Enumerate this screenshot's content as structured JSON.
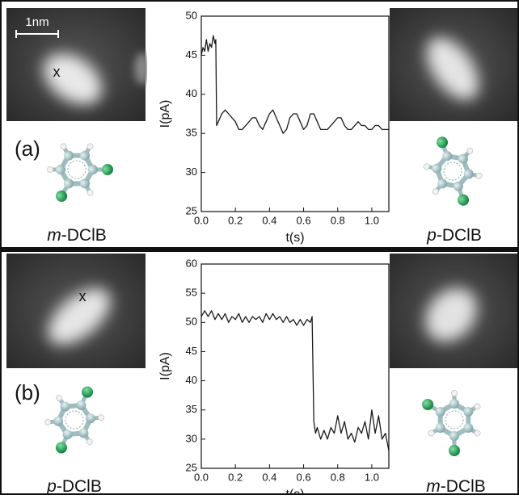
{
  "panels": [
    {
      "label": "(a)",
      "scale_bar": "1nm",
      "tip_mark": "x",
      "left_molecule": {
        "italic": "m",
        "rest": "-DClB"
      },
      "right_molecule": {
        "italic": "p",
        "rest": "-DClB"
      }
    },
    {
      "label": "(b)",
      "tip_mark": "x",
      "left_molecule": {
        "italic": "p",
        "rest": "-DClB"
      },
      "right_molecule": {
        "italic": "m",
        "rest": "-DClB"
      }
    }
  ],
  "chart_data": [
    {
      "type": "line",
      "x_label": "t(s)",
      "y_label": "I(pA)",
      "color": "#1a1a1a",
      "x": [
        0,
        0.01,
        0.02,
        0.03,
        0.04,
        0.05,
        0.06,
        0.07,
        0.08,
        0.085,
        0.09,
        0.1,
        0.12,
        0.14,
        0.16,
        0.18,
        0.2,
        0.22,
        0.24,
        0.26,
        0.28,
        0.3,
        0.32,
        0.34,
        0.36,
        0.38,
        0.4,
        0.42,
        0.44,
        0.46,
        0.48,
        0.5,
        0.52,
        0.54,
        0.56,
        0.58,
        0.6,
        0.62,
        0.64,
        0.66,
        0.68,
        0.7,
        0.72,
        0.74,
        0.76,
        0.78,
        0.8,
        0.82,
        0.84,
        0.86,
        0.88,
        0.9,
        0.92,
        0.94,
        0.96,
        0.98,
        1.0,
        1.02,
        1.04,
        1.06,
        1.08,
        1.1
      ],
      "values": [
        45,
        46,
        45.5,
        47,
        45.5,
        46.5,
        46,
        47.5,
        46.5,
        47,
        36,
        36.5,
        37.5,
        38,
        37.5,
        37,
        36.5,
        35.5,
        35.5,
        36,
        36.5,
        37,
        37,
        36,
        35.5,
        36.5,
        37.5,
        38,
        37,
        36,
        35,
        35.5,
        37,
        37.5,
        37.5,
        36.5,
        35.5,
        36,
        37.5,
        37.5,
        36.5,
        35.5,
        35.5,
        35.5,
        36,
        36.5,
        37,
        37,
        36,
        35.5,
        35.5,
        36,
        36.5,
        36,
        36,
        35.5,
        35.5,
        36,
        36,
        35.5,
        35.5,
        35.5
      ],
      "xlim": [
        0,
        1.1
      ],
      "xticks": [
        {
          "value": 0,
          "label": "0.0"
        },
        0.2,
        0.4,
        0.6,
        0.8,
        {
          "value": 1,
          "label": "1.0"
        }
      ],
      "ylim": [
        25,
        50
      ],
      "yticks": [
        25,
        30,
        35,
        40,
        45,
        50
      ]
    },
    {
      "type": "line",
      "x_label": "t(s)",
      "y_label": "I(pA)",
      "color": "#1a1a1a",
      "x": [
        0,
        0.02,
        0.04,
        0.06,
        0.08,
        0.1,
        0.12,
        0.14,
        0.16,
        0.18,
        0.2,
        0.22,
        0.24,
        0.26,
        0.28,
        0.3,
        0.32,
        0.34,
        0.36,
        0.38,
        0.4,
        0.42,
        0.44,
        0.46,
        0.48,
        0.5,
        0.52,
        0.54,
        0.56,
        0.58,
        0.6,
        0.62,
        0.64,
        0.65,
        0.66,
        0.67,
        0.68,
        0.7,
        0.72,
        0.74,
        0.76,
        0.78,
        0.8,
        0.82,
        0.84,
        0.86,
        0.88,
        0.9,
        0.92,
        0.94,
        0.96,
        0.98,
        1.0,
        1.02,
        1.04,
        1.06,
        1.08,
        1.1
      ],
      "values": [
        51,
        52,
        51,
        52,
        50.5,
        51.5,
        50.5,
        51.5,
        50,
        51,
        50.5,
        51.5,
        50,
        51,
        50,
        51,
        50.5,
        51,
        50,
        51.5,
        50.5,
        51.5,
        50.5,
        51,
        50,
        51,
        50,
        50.5,
        49.5,
        50.5,
        49.5,
        50.5,
        50,
        51,
        33,
        31,
        32,
        30,
        31.5,
        30,
        32,
        31,
        34,
        31,
        33,
        30,
        31,
        29.5,
        32,
        31,
        33,
        30,
        35,
        31,
        34,
        30,
        31,
        28
      ],
      "xlim": [
        0,
        1.1
      ],
      "xticks": [
        {
          "value": 0,
          "label": "0.0"
        },
        0.2,
        0.4,
        0.6,
        0.8,
        {
          "value": 1,
          "label": "1.0"
        }
      ],
      "ylim": [
        25,
        60
      ],
      "yticks": [
        25,
        30,
        35,
        40,
        45,
        50,
        55,
        60
      ]
    }
  ]
}
